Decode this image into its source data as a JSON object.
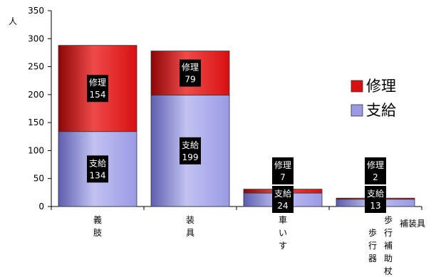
{
  "chart_data": {
    "type": "bar",
    "stacked": true,
    "ylabel": "人",
    "ylim": [
      0,
      350
    ],
    "yticks": [
      0,
      50,
      100,
      150,
      200,
      250,
      300,
      350
    ],
    "categories": [
      "義肢",
      "装具",
      "車いす",
      "歩行器",
      "歩行補助杖",
      "補装具"
    ],
    "bars": [
      {
        "category_index": 0,
        "values": {
          "支給": 134,
          "修理": 154
        }
      },
      {
        "category_index": 1,
        "values": {
          "支給": 199,
          "修理": 79
        }
      },
      {
        "category_index": 2,
        "values": {
          "支給": 24,
          "修理": 7
        }
      },
      {
        "category_index": 3,
        "values": {
          "支給": 13,
          "修理": 2
        }
      }
    ],
    "series": [
      {
        "name": "支給",
        "color": "#9a9ae6"
      },
      {
        "name": "修理",
        "color": "#d81010"
      }
    ],
    "legend": [
      {
        "name": "修理",
        "color": "#d81010"
      },
      {
        "name": "支給",
        "color": "#9a9ae6"
      }
    ],
    "legend_position": "right",
    "grid": false,
    "style": "3d"
  }
}
